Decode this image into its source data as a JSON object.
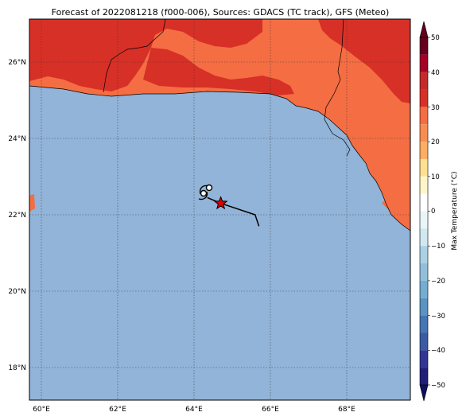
{
  "title": "Forecast of 2022081218 (f000-006), Sources: GDACS (TC track), GFS (Meteo)",
  "colors": {
    "sea": "#91b4d8",
    "land_30": "#f46d43",
    "land_40": "#d73027",
    "land_20": "#fdae61",
    "track": "#000000",
    "storm_star": "#e00000"
  },
  "lat_ticks": [
    "26°N",
    "24°N",
    "22°N",
    "20°N",
    "18°N"
  ],
  "lon_ticks": [
    "60°E",
    "62°E",
    "64°E",
    "66°E",
    "68°E"
  ],
  "colorbar": {
    "label": "Max Temperature (°C)",
    "ticks": [
      "50",
      "40",
      "30",
      "20",
      "10",
      "0",
      "−10",
      "−20",
      "−30",
      "−40",
      "−50"
    ],
    "levels": [
      {
        "from": 45,
        "to": 50,
        "color": "#67001f"
      },
      {
        "from": 40,
        "to": 45,
        "color": "#a50026"
      },
      {
        "from": 35,
        "to": 40,
        "color": "#c52a2a"
      },
      {
        "from": 30,
        "to": 35,
        "color": "#d73027"
      },
      {
        "from": 25,
        "to": 30,
        "color": "#f46d43"
      },
      {
        "from": 20,
        "to": 25,
        "color": "#f88d52"
      },
      {
        "from": 15,
        "to": 20,
        "color": "#fdae61"
      },
      {
        "from": 10,
        "to": 15,
        "color": "#fee090"
      },
      {
        "from": 5,
        "to": 10,
        "color": "#fff5c8"
      },
      {
        "from": 0,
        "to": 5,
        "color": "#ffffff"
      },
      {
        "from": -5,
        "to": 0,
        "color": "#eaf5f8"
      },
      {
        "from": -10,
        "to": -5,
        "color": "#d1e8f0"
      },
      {
        "from": -15,
        "to": -10,
        "color": "#abd0e4"
      },
      {
        "from": -20,
        "to": -15,
        "color": "#91bfdb"
      },
      {
        "from": -25,
        "to": -20,
        "color": "#74add1"
      },
      {
        "from": -30,
        "to": -25,
        "color": "#5b93c2"
      },
      {
        "from": -35,
        "to": -30,
        "color": "#4575b4"
      },
      {
        "from": -40,
        "to": -35,
        "color": "#3b5aa5"
      },
      {
        "from": -45,
        "to": -40,
        "color": "#313695"
      },
      {
        "from": -50,
        "to": -45,
        "color": "#1f1f7a"
      }
    ]
  },
  "track": {
    "points": [
      {
        "lon": 65.7,
        "lat": 21.7
      },
      {
        "lon": 65.6,
        "lat": 22.0
      },
      {
        "lon": 64.7,
        "lat": 22.3
      },
      {
        "lon": 64.35,
        "lat": 22.45
      }
    ],
    "current": {
      "lon": 64.7,
      "lat": 22.3
    }
  }
}
